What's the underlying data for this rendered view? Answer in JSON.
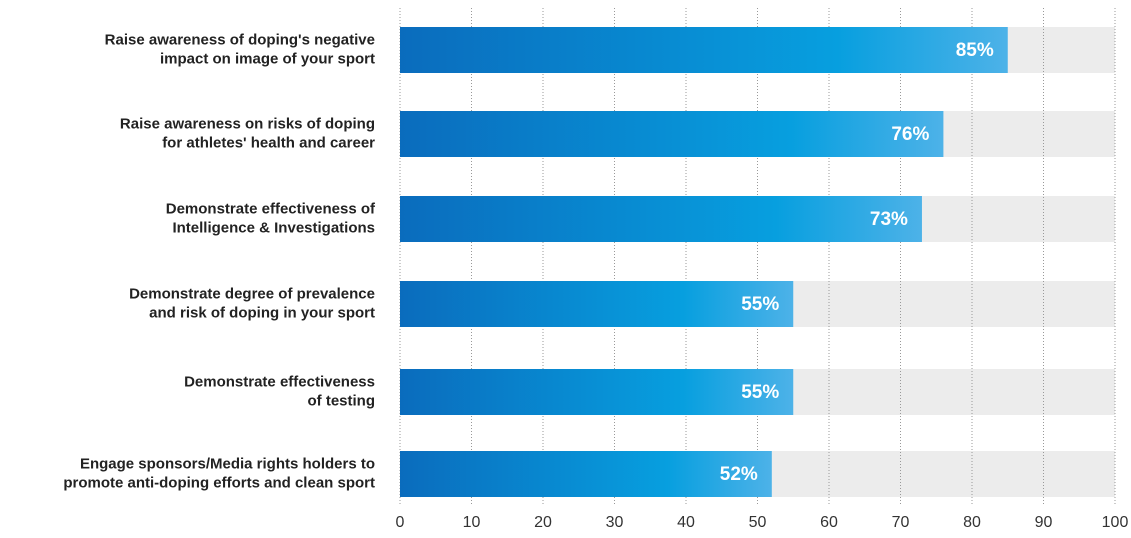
{
  "chart_data": {
    "type": "barh",
    "categories": [
      [
        "Raise awareness of doping's negative",
        "impact on image of your sport"
      ],
      [
        "Raise awareness on risks of doping",
        "for athletes' health and career"
      ],
      [
        "Demonstrate effectiveness of",
        "Intelligence & Investigations"
      ],
      [
        "Demonstrate degree of prevalence",
        "and risk of doping in your sport"
      ],
      [
        "Demonstrate effectiveness",
        "of testing"
      ],
      [
        "Engage sponsors/Media rights holders to",
        "promote anti-doping efforts and clean sport"
      ]
    ],
    "values": [
      85,
      76,
      73,
      55,
      55,
      52
    ],
    "value_labels": [
      "85%",
      "76%",
      "73%",
      "55%",
      "55%",
      "52%"
    ],
    "colors": [
      "#0a6cbd",
      "#079fdf",
      "#4db2e8"
    ],
    "track_color": "#ececec",
    "xlim": [
      0,
      100
    ],
    "xticks": [
      0,
      10,
      20,
      30,
      40,
      50,
      60,
      70,
      80,
      90,
      100
    ],
    "grid": true
  }
}
